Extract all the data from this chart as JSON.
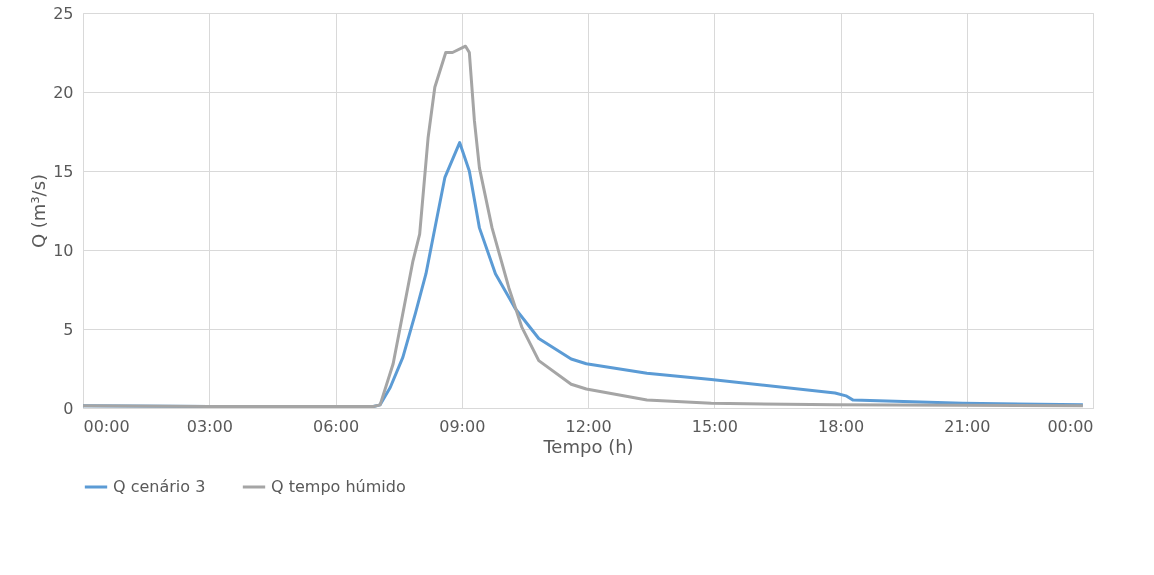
{
  "chart_data": {
    "type": "line",
    "xlabel": "Tempo (h)",
    "ylabel": "Q (m³/s)",
    "xlim": [
      0,
      24
    ],
    "ylim": [
      0,
      25
    ],
    "xticks": [
      {
        "value": 0,
        "label": "00:00"
      },
      {
        "value": 3,
        "label": "03:00"
      },
      {
        "value": 6,
        "label": "06:00"
      },
      {
        "value": 9,
        "label": "09:00"
      },
      {
        "value": 12,
        "label": "12:00"
      },
      {
        "value": 15,
        "label": "15:00"
      },
      {
        "value": 18,
        "label": "18:00"
      },
      {
        "value": 21,
        "label": "21:00"
      },
      {
        "value": 24,
        "label": "00:00"
      }
    ],
    "yticks": [
      0,
      5,
      10,
      15,
      20,
      25
    ],
    "grid": true,
    "legend": "bottom",
    "marker": "none",
    "line_style": "solid",
    "series": [
      {
        "name": "Q cenário 3",
        "color": "#5b9bd5",
        "x": [
          0,
          3,
          6,
          6.9,
          7.06,
          7.3,
          7.6,
          7.9,
          8.15,
          8.4,
          8.6,
          8.95,
          9.18,
          9.42,
          9.8,
          10.27,
          10.83,
          11.6,
          11.96,
          13.4,
          14.93,
          17.87,
          18.13,
          18.3,
          20.9,
          23.76
        ],
        "values": [
          0.15,
          0.1,
          0.1,
          0.1,
          0.2,
          1.3,
          3.2,
          6.0,
          8.5,
          11.9,
          14.6,
          16.8,
          15.0,
          11.4,
          8.5,
          6.3,
          4.4,
          3.1,
          2.8,
          2.2,
          1.8,
          0.95,
          0.77,
          0.5,
          0.3,
          0.2
        ]
      },
      {
        "name": "Q tempo húmido",
        "color": "#a5a5a5",
        "x": [
          0,
          3,
          6,
          6.9,
          7.06,
          7.37,
          7.84,
          8.0,
          8.2,
          8.36,
          8.62,
          8.78,
          9.09,
          9.18,
          9.3,
          9.42,
          9.72,
          10.12,
          10.43,
          10.83,
          11.6,
          11.96,
          13.4,
          14.93,
          17.87,
          23.76
        ],
        "values": [
          0.15,
          0.1,
          0.1,
          0.1,
          0.2,
          2.8,
          9.3,
          11.0,
          17.1,
          20.3,
          22.5,
          22.5,
          22.9,
          22.5,
          18.2,
          15.2,
          11.4,
          7.6,
          5.1,
          3.0,
          1.5,
          1.2,
          0.5,
          0.3,
          0.2,
          0.15
        ]
      }
    ]
  }
}
